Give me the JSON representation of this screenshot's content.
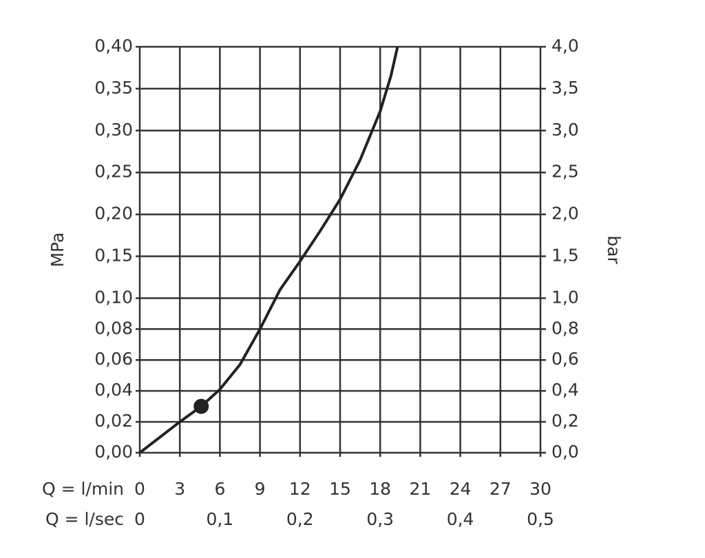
{
  "chart_data": {
    "type": "line",
    "y_label": "MPa",
    "y2_label": "bar",
    "x_label": "Q = l/min",
    "x2_label": "Q = l/sec",
    "x": [
      0,
      1.5,
      3,
      4.6,
      6,
      7.5,
      9,
      10.5,
      12,
      13.5,
      15,
      16.5,
      18,
      18.8,
      19.3
    ],
    "series": [
      {
        "name": "MPa",
        "color": "#222",
        "values": [
          0,
          0.01,
          0.02,
          0.03,
          0.041,
          0.057,
          0.08,
          0.11,
          0.144,
          0.18,
          0.218,
          0.265,
          0.323,
          0.365,
          0.4
        ]
      }
    ],
    "marker": {
      "x": 4.6,
      "y": 0.03
    },
    "xlim": [
      0,
      30
    ],
    "xticks": [
      0,
      3,
      6,
      9,
      12,
      15,
      18,
      21,
      24,
      27,
      30
    ],
    "x2lim": [
      0,
      0.5
    ],
    "x2ticks": [
      0,
      {
        "value": 0.1,
        "label": "0,1"
      },
      {
        "value": 0.2,
        "label": "0,2"
      },
      {
        "value": 0.3,
        "label": "0,3"
      },
      {
        "value": 0.4,
        "label": "0,4"
      },
      {
        "value": 0.5,
        "label": "0,5"
      }
    ],
    "ylim": [
      0,
      0.4
    ],
    "yticks": [
      {
        "value": 0,
        "label": "0,00"
      },
      {
        "value": 0.02,
        "label": "0,02"
      },
      {
        "value": 0.04,
        "label": "0,04"
      },
      {
        "value": 0.06,
        "label": "0,06"
      },
      {
        "value": 0.08,
        "label": "0,08"
      },
      {
        "value": 0.1,
        "label": "0,10"
      },
      {
        "value": 0.15,
        "label": "0,15"
      },
      {
        "value": 0.2,
        "label": "0,20"
      },
      {
        "value": 0.25,
        "label": "0,25"
      },
      {
        "value": 0.3,
        "label": "0,30"
      },
      {
        "value": 0.35,
        "label": "0,35"
      },
      {
        "value": 0.4,
        "label": "0,40"
      }
    ],
    "y2lim": [
      0,
      4
    ],
    "y2ticks": [
      {
        "value": 0,
        "label": "0,0"
      },
      {
        "value": 0.2,
        "label": "0,2"
      },
      {
        "value": 0.4,
        "label": "0,4"
      },
      {
        "value": 0.6,
        "label": "0,6"
      },
      {
        "value": 0.8,
        "label": "0,8"
      },
      {
        "value": 1,
        "label": "1,0"
      },
      {
        "value": 1.5,
        "label": "1,5"
      },
      {
        "value": 2,
        "label": "2,0"
      },
      {
        "value": 2.5,
        "label": "2,5"
      },
      {
        "value": 3,
        "label": "3,0"
      },
      {
        "value": 3.5,
        "label": "3,5"
      },
      {
        "value": 4,
        "label": "4,0"
      }
    ],
    "grid": true
  }
}
